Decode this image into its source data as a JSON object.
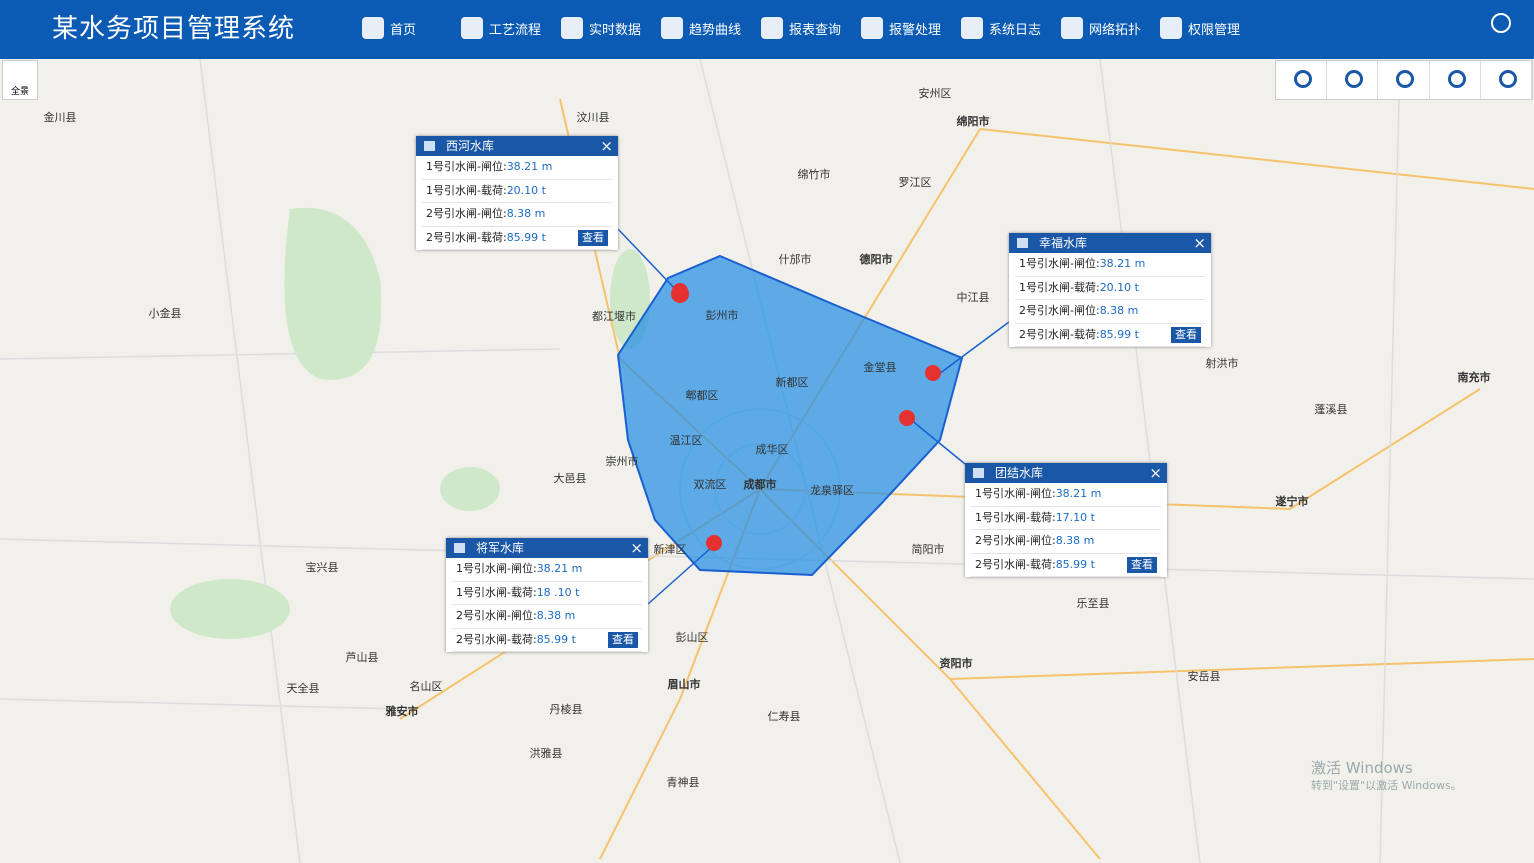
{
  "header": {
    "title": "某水务项目管理系统",
    "nav": [
      "首页",
      "工艺流程",
      "实时数据",
      "趋势曲线",
      "报表查询",
      "报警处理",
      "系统日志",
      "网络拓扑",
      "权限管理"
    ]
  },
  "map": {
    "zoom_button": "全景",
    "labels": [
      "成都市",
      "德阳市",
      "绵阳市",
      "眉山市",
      "资阳市",
      "遂宁市",
      "南充市",
      "雅安市",
      "彭州市",
      "郫都区",
      "新都区",
      "温江区",
      "双流区",
      "龙泉驿区",
      "金堂县",
      "崇州市",
      "大邑县",
      "简阳市",
      "仁寿县",
      "都江堰市",
      "什邡市",
      "中江县",
      "汶川县",
      "金川县",
      "小金县",
      "宝兴县",
      "芦山县",
      "天全县",
      "名山区",
      "丹棱县",
      "洪雅县",
      "青神县",
      "乐至县",
      "安岳县",
      "射洪市",
      "蓬溪县",
      "罗江区",
      "安州区",
      "新津区",
      "彭山区",
      "成华区",
      "绵竹市"
    ],
    "watermark": [
      "激活 Windows",
      "转到\"设置\"以激活 Windows。"
    ]
  },
  "popups": [
    {
      "title": "西河水库",
      "rows": [
        [
          "1号引水闸-闸位:",
          "38.21 m"
        ],
        [
          "1号引水闸-载荷:",
          "20.10 t"
        ],
        [
          "2号引水闸-闸位:",
          "8.38 m"
        ],
        [
          "2号引水闸-载荷:",
          "85.99 t"
        ]
      ],
      "button": "查看"
    },
    {
      "title": "幸福水库",
      "rows": [
        [
          "1号引水闸-闸位:",
          "38.21 m"
        ],
        [
          "1号引水闸-载荷:",
          "20.10 t"
        ],
        [
          "2号引水闸-闸位:",
          "8.38 m"
        ],
        [
          "2号引水闸-载荷:",
          "85.99 t"
        ]
      ],
      "button": "查看"
    },
    {
      "title": "团结水库",
      "rows": [
        [
          "1号引水闸-闸位:",
          "38.21 m"
        ],
        [
          "1号引水闸-载荷:",
          "17.10 t"
        ],
        [
          "2号引水闸-闸位:",
          "8.38 m"
        ],
        [
          "2号引水闸-载荷:",
          "85.99 t"
        ]
      ],
      "button": "查看"
    },
    {
      "title": "将军水库",
      "rows": [
        [
          "1号引水闸-闸位:",
          "38.21 m"
        ],
        [
          "1号引水闸-载荷:",
          "18 .10 t"
        ],
        [
          "2号引水闸-闸位:",
          "8.38 m"
        ],
        [
          "2号引水闸-载荷:",
          "85.99 t"
        ]
      ],
      "button": "查看"
    }
  ]
}
